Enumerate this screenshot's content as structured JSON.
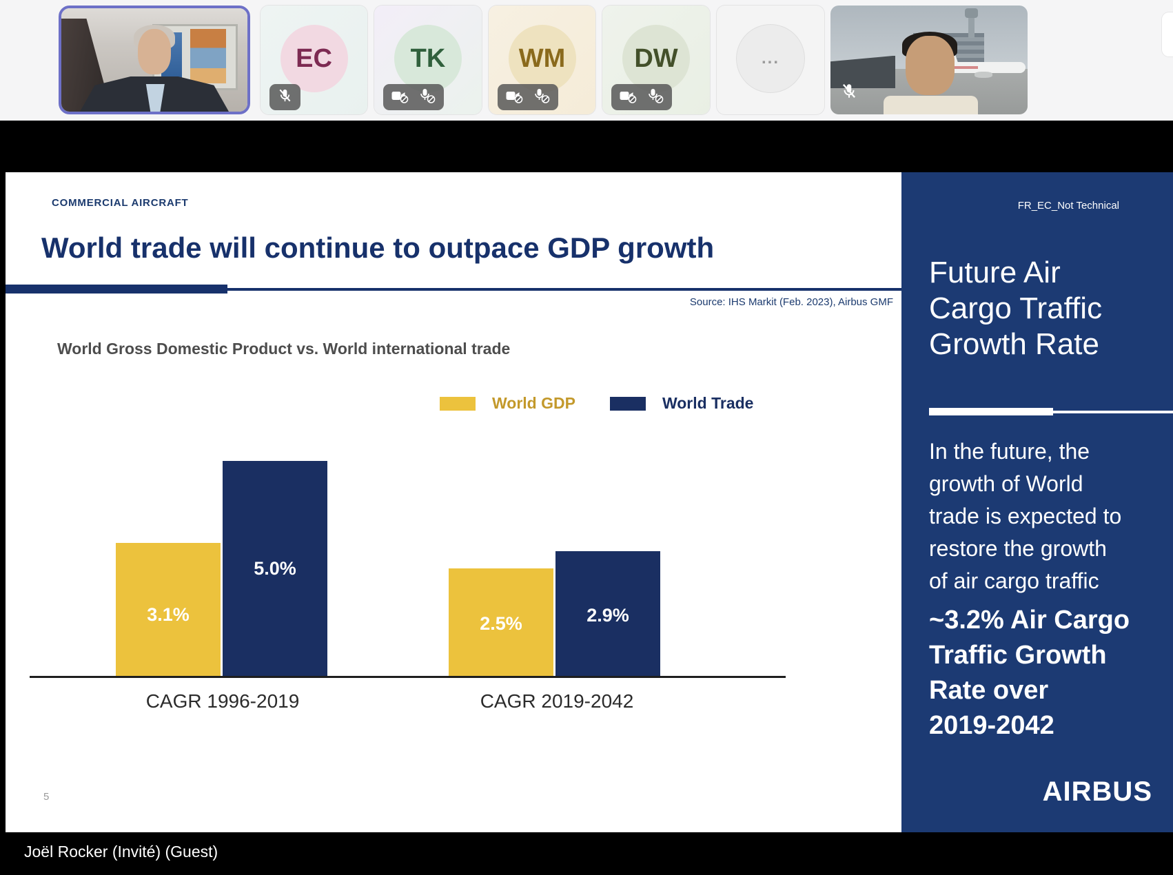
{
  "meeting": {
    "participants": [
      {
        "kind": "video",
        "label": "presenter webcam",
        "active_speaker": true
      },
      {
        "kind": "initials",
        "initials": "EC",
        "muted": true
      },
      {
        "kind": "initials",
        "initials": "TK",
        "camera_off": true,
        "muted": true
      },
      {
        "kind": "initials",
        "initials": "WM",
        "camera_off": true,
        "muted": true
      },
      {
        "kind": "initials",
        "initials": "DW",
        "camera_off": true,
        "muted": true
      },
      {
        "kind": "overflow",
        "label": "..."
      },
      {
        "kind": "video",
        "label": "attendee webcam",
        "muted": true
      }
    ],
    "name_bar": "Joël Rocker (Invité) (Guest)"
  },
  "slide": {
    "eyebrow": "COMMERCIAL AIRCRAFT",
    "title": "World trade will continue to outpace GDP growth",
    "source": "Source: IHS Markit (Feb. 2023), Airbus GMF",
    "page_number": "5"
  },
  "chart_data": {
    "type": "bar",
    "title": "World Gross Domestic Product vs. World international trade",
    "categories": [
      "CAGR 1996-2019",
      "CAGR 2019-2042"
    ],
    "series": [
      {
        "name": "World GDP",
        "color": "#ecc23d",
        "label_color": "#c3992b",
        "values": [
          3.1,
          2.5
        ]
      },
      {
        "name": "World Trade",
        "color": "#1a2f62",
        "label_color": "#1a2f62",
        "values": [
          5.0,
          2.9
        ]
      }
    ],
    "value_labels": [
      [
        "3.1%",
        "2.5%"
      ],
      [
        "5.0%",
        "2.9%"
      ]
    ],
    "ylim": [
      0,
      5.5
    ],
    "gridlines": false,
    "legend_position": "top-center"
  },
  "panel": {
    "classification": "FR_EC_Not Technical",
    "title": "Future Air\nCargo Traffic\nGrowth Rate",
    "body": "In the future, the\ngrowth of World\ntrade is expected to\nrestore the growth\nof air cargo traffic",
    "highlight": "~3.2% Air Cargo\nTraffic Growth\nRate over\n2019-2042",
    "brand": "AIRBUS"
  },
  "colors": {
    "accent_yellow": "#ecc23d",
    "accent_navy": "#1a2f62",
    "panel_navy": "#1c3a73",
    "title_navy": "#17316b",
    "active_speaker_border": "#6d70c7"
  }
}
